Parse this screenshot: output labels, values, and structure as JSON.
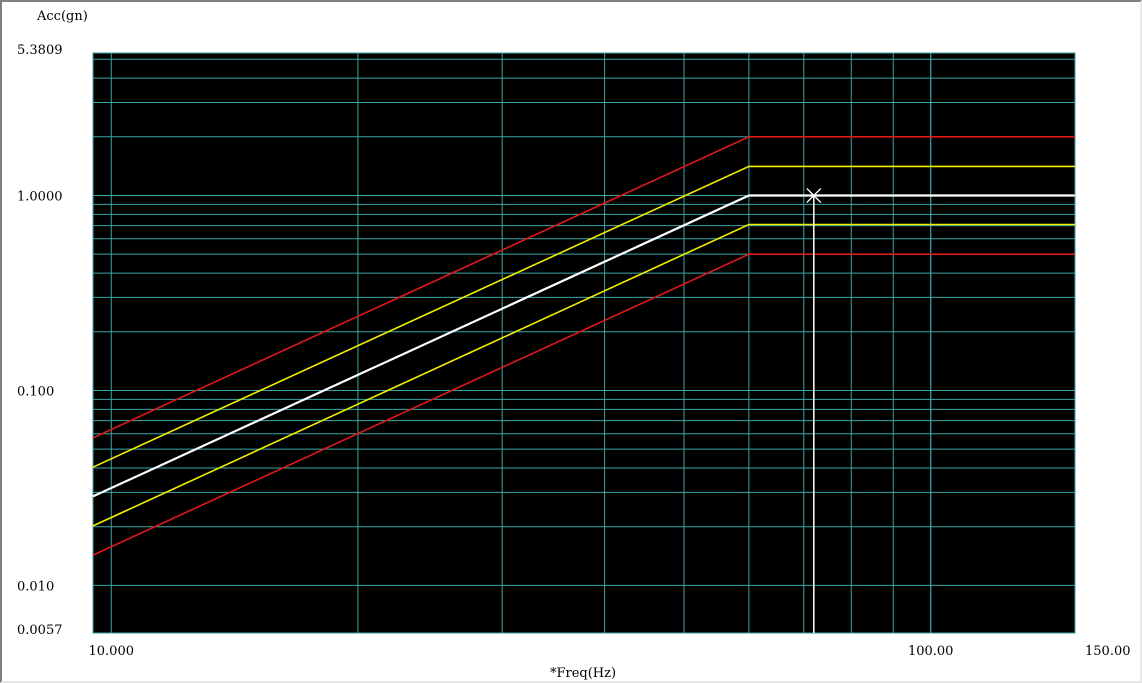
{
  "chart_data": {
    "type": "line",
    "title": "",
    "ylabel": "Acc(gn)",
    "xlabel": "*Freq(Hz)",
    "x_scale": "log",
    "y_scale": "log",
    "xlim": [
      9.5,
      150.0
    ],
    "ylim": [
      0.0057,
      5.3809
    ],
    "x_tick_labels": [
      {
        "value": 10.0,
        "label": "10.000"
      },
      {
        "value": 100.0,
        "label": "100.00"
      },
      {
        "value": 150.0,
        "label": "150.00"
      }
    ],
    "y_tick_labels": [
      {
        "value": 5.3809,
        "label": "5.3809"
      },
      {
        "value": 1.0,
        "label": "1.0000"
      },
      {
        "value": 0.1,
        "label": "0.100"
      },
      {
        "value": 0.01,
        "label": "0.010"
      },
      {
        "value": 0.0057,
        "label": "0.0057"
      }
    ],
    "x_gridlines": [
      20,
      30,
      40,
      50,
      60,
      70,
      80,
      90,
      100
    ],
    "y_gridlines": [
      0.02,
      0.03,
      0.04,
      0.05,
      0.06,
      0.07,
      0.08,
      0.09,
      0.2,
      0.3,
      0.4,
      0.5,
      0.6,
      0.7,
      0.8,
      0.9,
      2,
      3,
      4,
      5
    ],
    "grid": true,
    "cursor": {
      "x": 72.0,
      "y": 1.0
    },
    "colors": {
      "background": "#000000",
      "grid": "#3aa6a6",
      "abort_limit": "#e01818",
      "alarm_limit": "#f0f000",
      "control": "#ffffff"
    },
    "series": [
      {
        "role": "abort_limit",
        "x": [
          9.5,
          60.0,
          150.0
        ],
        "y": [
          0.0571,
          2.0,
          2.0
        ]
      },
      {
        "role": "alarm_limit",
        "x": [
          9.5,
          60.0,
          150.0
        ],
        "y": [
          0.0404,
          1.41,
          1.41
        ]
      },
      {
        "role": "control",
        "x": [
          9.5,
          60.0,
          150.0
        ],
        "y": [
          0.0286,
          1.0,
          1.0
        ]
      },
      {
        "role": "alarm_limit",
        "x": [
          9.5,
          60.0,
          150.0
        ],
        "y": [
          0.0202,
          0.71,
          0.71
        ]
      },
      {
        "role": "abort_limit",
        "x": [
          9.5,
          60.0,
          150.0
        ],
        "y": [
          0.0143,
          0.5,
          0.5
        ]
      }
    ]
  }
}
